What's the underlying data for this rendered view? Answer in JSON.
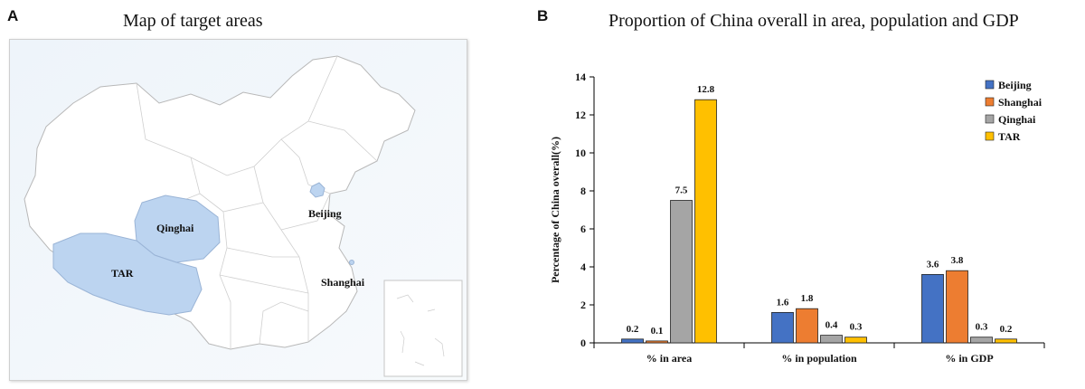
{
  "panel_a": {
    "letter": "A",
    "title": "Map of target areas",
    "regions": [
      {
        "name": "Qinghai",
        "color": "#bcd4f0"
      },
      {
        "name": "TAR",
        "color": "#bcd4f0"
      },
      {
        "name": "Beijing",
        "color": "#bcd4f0"
      },
      {
        "name": "Shanghai",
        "color": "#bcd4f0"
      }
    ]
  },
  "panel_b": {
    "letter": "B",
    "title": "Proportion of China overall in area, population and GDP"
  },
  "colors": {
    "Beijing": "#4472c4",
    "Shanghai": "#ed7d31",
    "Qinghai": "#a5a5a5",
    "TAR": "#ffc000"
  },
  "chart_data": {
    "type": "bar",
    "title": "Proportion of China overall in area, population and GDP",
    "xlabel": "",
    "ylabel": "Percentage of China overall(%)",
    "ylim": [
      0,
      14
    ],
    "yticks": [
      "0",
      "2",
      "4",
      "6",
      "8",
      "10",
      "12",
      "14"
    ],
    "categories": [
      "% in area",
      "% in population",
      "% in GDP"
    ],
    "series": [
      {
        "name": "Beijing",
        "values": [
          0.2,
          1.6,
          3.6
        ],
        "labels": [
          "0.2",
          "1.6",
          "3.6"
        ]
      },
      {
        "name": "Shanghai",
        "values": [
          0.1,
          1.8,
          3.8
        ],
        "labels": [
          "0.1",
          "1.8",
          "3.8"
        ]
      },
      {
        "name": "Qinghai",
        "values": [
          7.5,
          0.4,
          0.3
        ],
        "labels": [
          "7.5",
          "0.4",
          "0.3"
        ]
      },
      {
        "name": "TAR",
        "values": [
          12.8,
          0.3,
          0.2
        ],
        "labels": [
          "12.8",
          "0.3",
          "0.2"
        ]
      }
    ],
    "legend_position": "top-right",
    "grid": false
  }
}
